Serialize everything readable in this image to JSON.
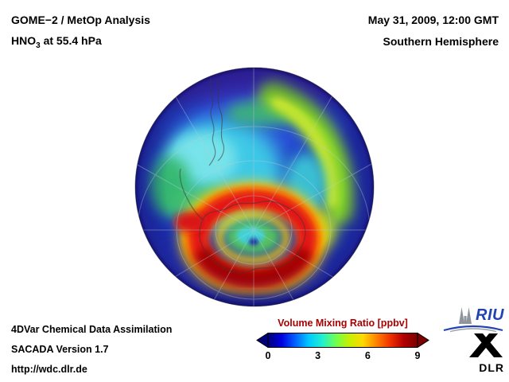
{
  "header": {
    "title_line1": "GOME−2 / MetOp Analysis",
    "hno3": {
      "prefix": "HNO",
      "sub": "3",
      "suffix": " at 55.4 hPa"
    },
    "datetime": "May 31, 2009, 12:00 GMT",
    "hemisphere": "Southern Hemisphere"
  },
  "footer": {
    "line1": "4DVar Chemical Data Assimilation",
    "line2": "SACADA Version 1.7",
    "line3": "http://wdc.dlr.de"
  },
  "colorbar": {
    "title": "Volume Mixing Ratio [ppbv]",
    "title_color": "#aa0000",
    "units": "ppbv",
    "ticks": [
      "0",
      "3",
      "6",
      "9"
    ],
    "colors": [
      "#00007a",
      "#0000e0",
      "#0060ff",
      "#00c8ff",
      "#20f0d0",
      "#70ff50",
      "#c8f000",
      "#ffd800",
      "#ff8000",
      "#f03000",
      "#b00000",
      "#7a0000"
    ]
  },
  "logos": {
    "riu_text": "RIU",
    "riu_color": "#2343b4",
    "dlr_text": "DLR"
  },
  "chart_data": {
    "type": "heatmap",
    "title": "GOME−2 / MetOp Analysis — HNO3 at 55.4 hPa",
    "datetime": "May 31, 2009, 12:00 GMT",
    "region": "Southern Hemisphere (polar view)",
    "variable": "HNO3 volume mixing ratio",
    "units": "ppbv",
    "colorbar_range": [
      0,
      10
    ],
    "colorbar_ticks": [
      0,
      3,
      6,
      9
    ],
    "legend_position": "bottom",
    "colormap": "jet-like (dark blue to dark red), arrows at both ends indicate out-of-range values",
    "features": [
      {
        "feature": "annular maximum (polar vortex collar) encircling Antarctica",
        "approx_ppbv": "8-10"
      },
      {
        "feature": "local minimum inside the ring near the pole (small dark blue spot)",
        "approx_ppbv": "0-1"
      },
      {
        "feature": "green interior of the ring",
        "approx_ppbv": "4-5"
      },
      {
        "feature": "large cyan mid-latitude region west/north of the vortex",
        "approx_ppbv": "3-4"
      },
      {
        "feature": "yellow-green tongue along the eastern limb of the disk",
        "approx_ppbv": "5-7"
      },
      {
        "feature": "dark blue low values toward the equatorward edge of the disk",
        "approx_ppbv": "0-2"
      }
    ]
  }
}
